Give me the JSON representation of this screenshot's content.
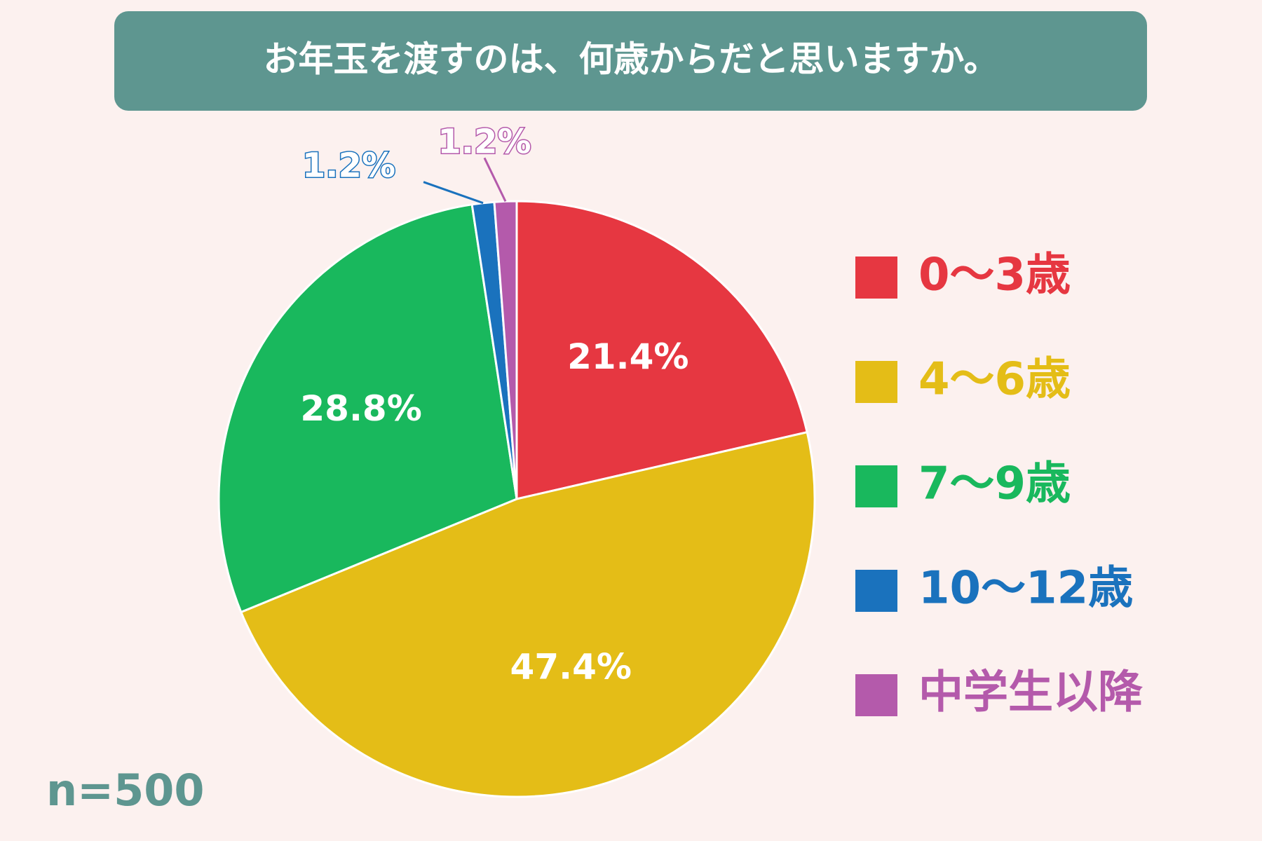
{
  "chart_data": {
    "type": "pie",
    "title": "お年玉を渡すのは、何歳からだと思いますか。",
    "categories": [
      "0〜3歳",
      "4〜6歳",
      "7〜9歳",
      "10〜12歳",
      "中学生以降"
    ],
    "values": [
      21.4,
      47.4,
      28.8,
      1.2,
      1.2
    ],
    "value_labels": [
      "21.4%",
      "47.4%",
      "28.8%",
      "1.2%",
      "1.2%"
    ],
    "colors": [
      "#e63741",
      "#e4bd17",
      "#19b85d",
      "#1a72bd",
      "#b45aab"
    ],
    "annotation": "n=500",
    "legend": "right"
  }
}
